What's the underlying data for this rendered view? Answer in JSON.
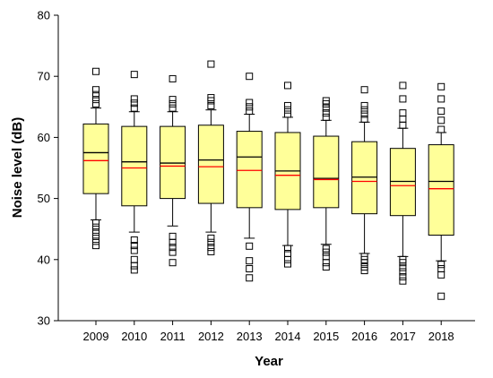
{
  "chart_data": {
    "type": "boxplot",
    "xlabel": "Year",
    "ylabel": "Noise level (dB)",
    "ylim": [
      30,
      80
    ],
    "yticks": [
      30,
      40,
      50,
      60,
      70,
      80
    ],
    "categories": [
      "2009",
      "2010",
      "2011",
      "2012",
      "2013",
      "2014",
      "2015",
      "2016",
      "2017",
      "2018"
    ],
    "colors": {
      "box_fill": "#ffff99",
      "median": "#000000",
      "mean": "#ff0000",
      "outlier": "#000000"
    },
    "boxes": [
      {
        "year": "2009",
        "whisker_low": 46.5,
        "q1": 50.8,
        "median": 57.5,
        "mean": 56.2,
        "q3": 62.2,
        "whisker_high": 64.8,
        "outliers": [
          42.3,
          43.0,
          43.8,
          44.5,
          45.3,
          46.0,
          65.5,
          66.2,
          67.0,
          67.8,
          70.8
        ]
      },
      {
        "year": "2010",
        "whisker_low": 44.5,
        "q1": 48.8,
        "median": 56.0,
        "mean": 55.0,
        "q3": 61.8,
        "whisker_high": 64.2,
        "outliers": [
          38.3,
          39.0,
          40.0,
          41.5,
          42.3,
          43.2,
          64.8,
          65.6,
          66.3,
          70.3
        ]
      },
      {
        "year": "2011",
        "whisker_low": 45.5,
        "q1": 50.0,
        "median": 55.8,
        "mean": 55.3,
        "q3": 61.8,
        "whisker_high": 64.2,
        "outliers": [
          39.5,
          41.2,
          42.0,
          42.8,
          43.8,
          64.8,
          65.5,
          66.2,
          69.6
        ]
      },
      {
        "year": "2012",
        "whisker_low": 44.5,
        "q1": 49.2,
        "median": 56.3,
        "mean": 55.2,
        "q3": 62.0,
        "whisker_high": 64.5,
        "outliers": [
          41.3,
          42.0,
          42.8,
          43.5,
          65.2,
          66.0,
          66.5,
          72.0
        ]
      },
      {
        "year": "2013",
        "whisker_low": 43.5,
        "q1": 48.5,
        "median": 56.8,
        "mean": 54.6,
        "q3": 61.0,
        "whisker_high": 63.8,
        "outliers": [
          37.0,
          38.5,
          39.8,
          42.2,
          64.3,
          65.0,
          65.7,
          70.0
        ]
      },
      {
        "year": "2014",
        "whisker_low": 42.3,
        "q1": 48.2,
        "median": 54.5,
        "mean": 53.8,
        "q3": 60.8,
        "whisker_high": 63.3,
        "outliers": [
          39.3,
          40.0,
          41.0,
          41.8,
          63.8,
          64.5,
          65.2,
          68.5
        ]
      },
      {
        "year": "2015",
        "whisker_low": 42.5,
        "q1": 48.5,
        "median": 53.3,
        "mean": 53.1,
        "q3": 60.2,
        "whisker_high": 62.8,
        "outliers": [
          38.8,
          39.5,
          40.5,
          41.2,
          41.8,
          63.3,
          64.0,
          64.8,
          65.5,
          66.0
        ]
      },
      {
        "year": "2016",
        "whisker_low": 41.0,
        "q1": 47.5,
        "median": 53.5,
        "mean": 52.8,
        "q3": 59.3,
        "whisker_high": 62.5,
        "outliers": [
          38.2,
          38.8,
          39.5,
          40.0,
          40.5,
          63.0,
          63.8,
          64.5,
          65.2,
          67.8
        ]
      },
      {
        "year": "2017",
        "whisker_low": 40.5,
        "q1": 47.2,
        "median": 52.8,
        "mean": 52.1,
        "q3": 58.2,
        "whisker_high": 61.5,
        "outliers": [
          36.5,
          37.2,
          38.0,
          38.7,
          39.5,
          40.0,
          62.0,
          63.0,
          64.0,
          66.3,
          68.5
        ]
      },
      {
        "year": "2018",
        "whisker_low": 39.8,
        "q1": 44.0,
        "median": 52.8,
        "mean": 51.6,
        "q3": 58.8,
        "whisker_high": 60.8,
        "outliers": [
          34.0,
          37.5,
          38.5,
          39.2,
          61.3,
          62.8,
          64.3,
          66.3,
          68.3
        ]
      }
    ]
  }
}
